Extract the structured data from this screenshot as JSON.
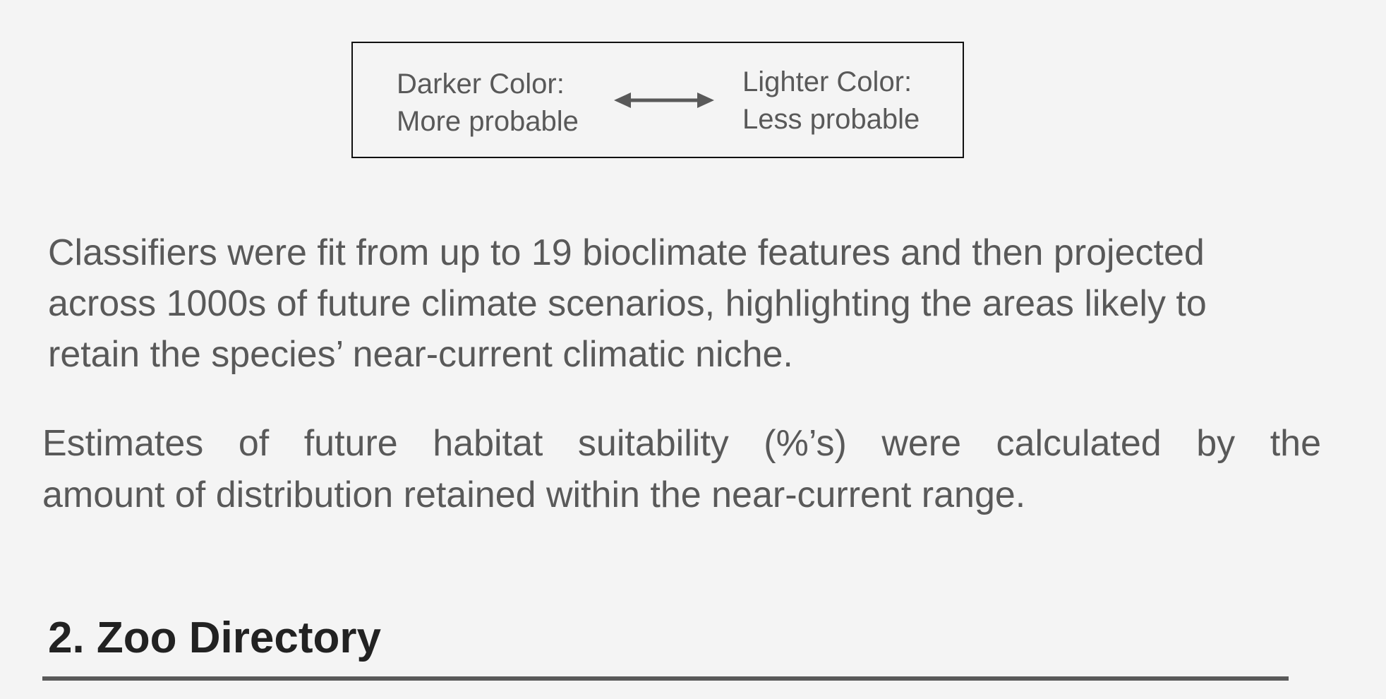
{
  "legend": {
    "left_line1": "Darker Color:",
    "left_line2": "More probable",
    "right_line1": "Lighter Color:",
    "right_line2": "Less probable",
    "arrow_icon": "double-arrow-icon"
  },
  "paragraph1": {
    "line1": "Classifiers were fit from up to 19 bioclimate features and then projected",
    "line2": "across 1000s of future climate scenarios, highlighting the areas likely to",
    "line3": "retain the species’ near-current climatic niche."
  },
  "paragraph2": {
    "line1": "Estimates of future habitat suitability (%’s) were calculated by the",
    "line2": "amount of distribution retained within the near-current range."
  },
  "section": {
    "title": "2. Zoo Directory"
  }
}
